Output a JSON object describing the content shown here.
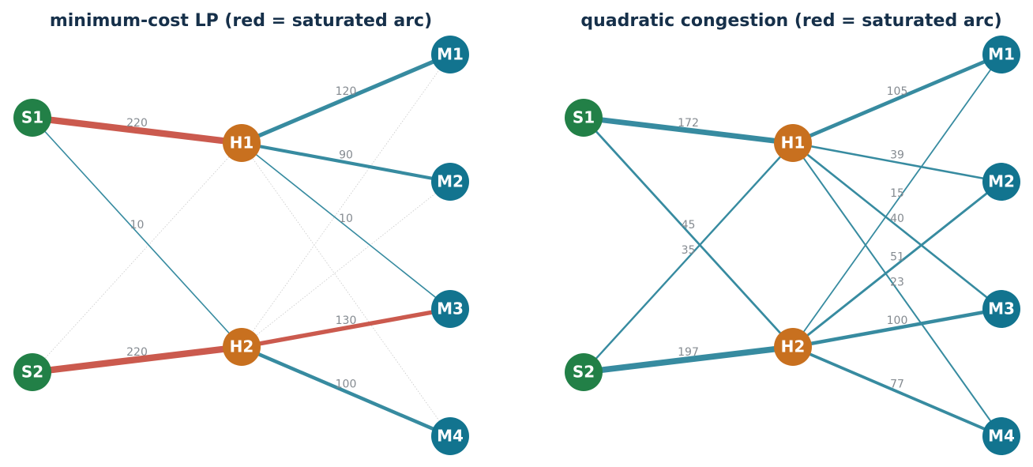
{
  "colors": {
    "supply_node": "#228047",
    "hub_node": "#c8701f",
    "market_node": "#12748f",
    "flow_edge": "#378ba0",
    "saturated_edge": "#cb5a4e",
    "unused_edge": "#c8c8c8",
    "title_text": "#16304a",
    "label_text": "#858b91"
  },
  "panels": [
    {
      "title": "minimum-cost LP (red = saturated arc)",
      "nodes": [
        {
          "id": "S1",
          "label": "S1",
          "type": "supply"
        },
        {
          "id": "S2",
          "label": "S2",
          "type": "supply"
        },
        {
          "id": "H1",
          "label": "H1",
          "type": "hub"
        },
        {
          "id": "H2",
          "label": "H2",
          "type": "hub"
        },
        {
          "id": "M1",
          "label": "M1",
          "type": "market"
        },
        {
          "id": "M2",
          "label": "M2",
          "type": "market"
        },
        {
          "id": "M3",
          "label": "M3",
          "type": "market"
        },
        {
          "id": "M4",
          "label": "M4",
          "type": "market"
        }
      ],
      "edges": [
        {
          "from": "S1",
          "to": "H1",
          "flow": 220,
          "label": "220",
          "saturated": true
        },
        {
          "from": "S1",
          "to": "H2",
          "flow": 10,
          "label": "10",
          "saturated": false
        },
        {
          "from": "S2",
          "to": "H1",
          "flow": 0,
          "label": "",
          "saturated": false
        },
        {
          "from": "S2",
          "to": "H2",
          "flow": 220,
          "label": "220",
          "saturated": true
        },
        {
          "from": "H1",
          "to": "M1",
          "flow": 120,
          "label": "120",
          "saturated": false
        },
        {
          "from": "H1",
          "to": "M2",
          "flow": 90,
          "label": "90",
          "saturated": false
        },
        {
          "from": "H1",
          "to": "M3",
          "flow": 10,
          "label": "10",
          "saturated": false
        },
        {
          "from": "H1",
          "to": "M4",
          "flow": 0,
          "label": "",
          "saturated": false
        },
        {
          "from": "H2",
          "to": "M1",
          "flow": 0,
          "label": "",
          "saturated": false
        },
        {
          "from": "H2",
          "to": "M2",
          "flow": 0,
          "label": "",
          "saturated": false
        },
        {
          "from": "H2",
          "to": "M3",
          "flow": 130,
          "label": "130",
          "saturated": true
        },
        {
          "from": "H2",
          "to": "M4",
          "flow": 100,
          "label": "100",
          "saturated": false
        }
      ]
    },
    {
      "title": "quadratic congestion (red = saturated arc)",
      "nodes": [
        {
          "id": "S1",
          "label": "S1",
          "type": "supply"
        },
        {
          "id": "S2",
          "label": "S2",
          "type": "supply"
        },
        {
          "id": "H1",
          "label": "H1",
          "type": "hub"
        },
        {
          "id": "H2",
          "label": "H2",
          "type": "hub"
        },
        {
          "id": "M1",
          "label": "M1",
          "type": "market"
        },
        {
          "id": "M2",
          "label": "M2",
          "type": "market"
        },
        {
          "id": "M3",
          "label": "M3",
          "type": "market"
        },
        {
          "id": "M4",
          "label": "M4",
          "type": "market"
        }
      ],
      "edges": [
        {
          "from": "S1",
          "to": "H1",
          "flow": 172,
          "label": "172",
          "saturated": false
        },
        {
          "from": "S1",
          "to": "H2",
          "flow": 45,
          "label": "45",
          "saturated": false
        },
        {
          "from": "S2",
          "to": "H1",
          "flow": 35,
          "label": "35",
          "saturated": false
        },
        {
          "from": "S2",
          "to": "H2",
          "flow": 197,
          "label": "197",
          "saturated": false
        },
        {
          "from": "H1",
          "to": "M1",
          "flow": 105,
          "label": "105",
          "saturated": false
        },
        {
          "from": "H1",
          "to": "M2",
          "flow": 39,
          "label": "39",
          "saturated": false
        },
        {
          "from": "H1",
          "to": "M3",
          "flow": 40,
          "label": "40",
          "saturated": false
        },
        {
          "from": "H1",
          "to": "M4",
          "flow": 23,
          "label": "23",
          "saturated": false
        },
        {
          "from": "H2",
          "to": "M1",
          "flow": 15,
          "label": "15",
          "saturated": false
        },
        {
          "from": "H2",
          "to": "M2",
          "flow": 51,
          "label": "51",
          "saturated": false
        },
        {
          "from": "H2",
          "to": "M3",
          "flow": 100,
          "label": "100",
          "saturated": false
        },
        {
          "from": "H2",
          "to": "M4",
          "flow": 77,
          "label": "77",
          "saturated": false
        }
      ]
    }
  ]
}
